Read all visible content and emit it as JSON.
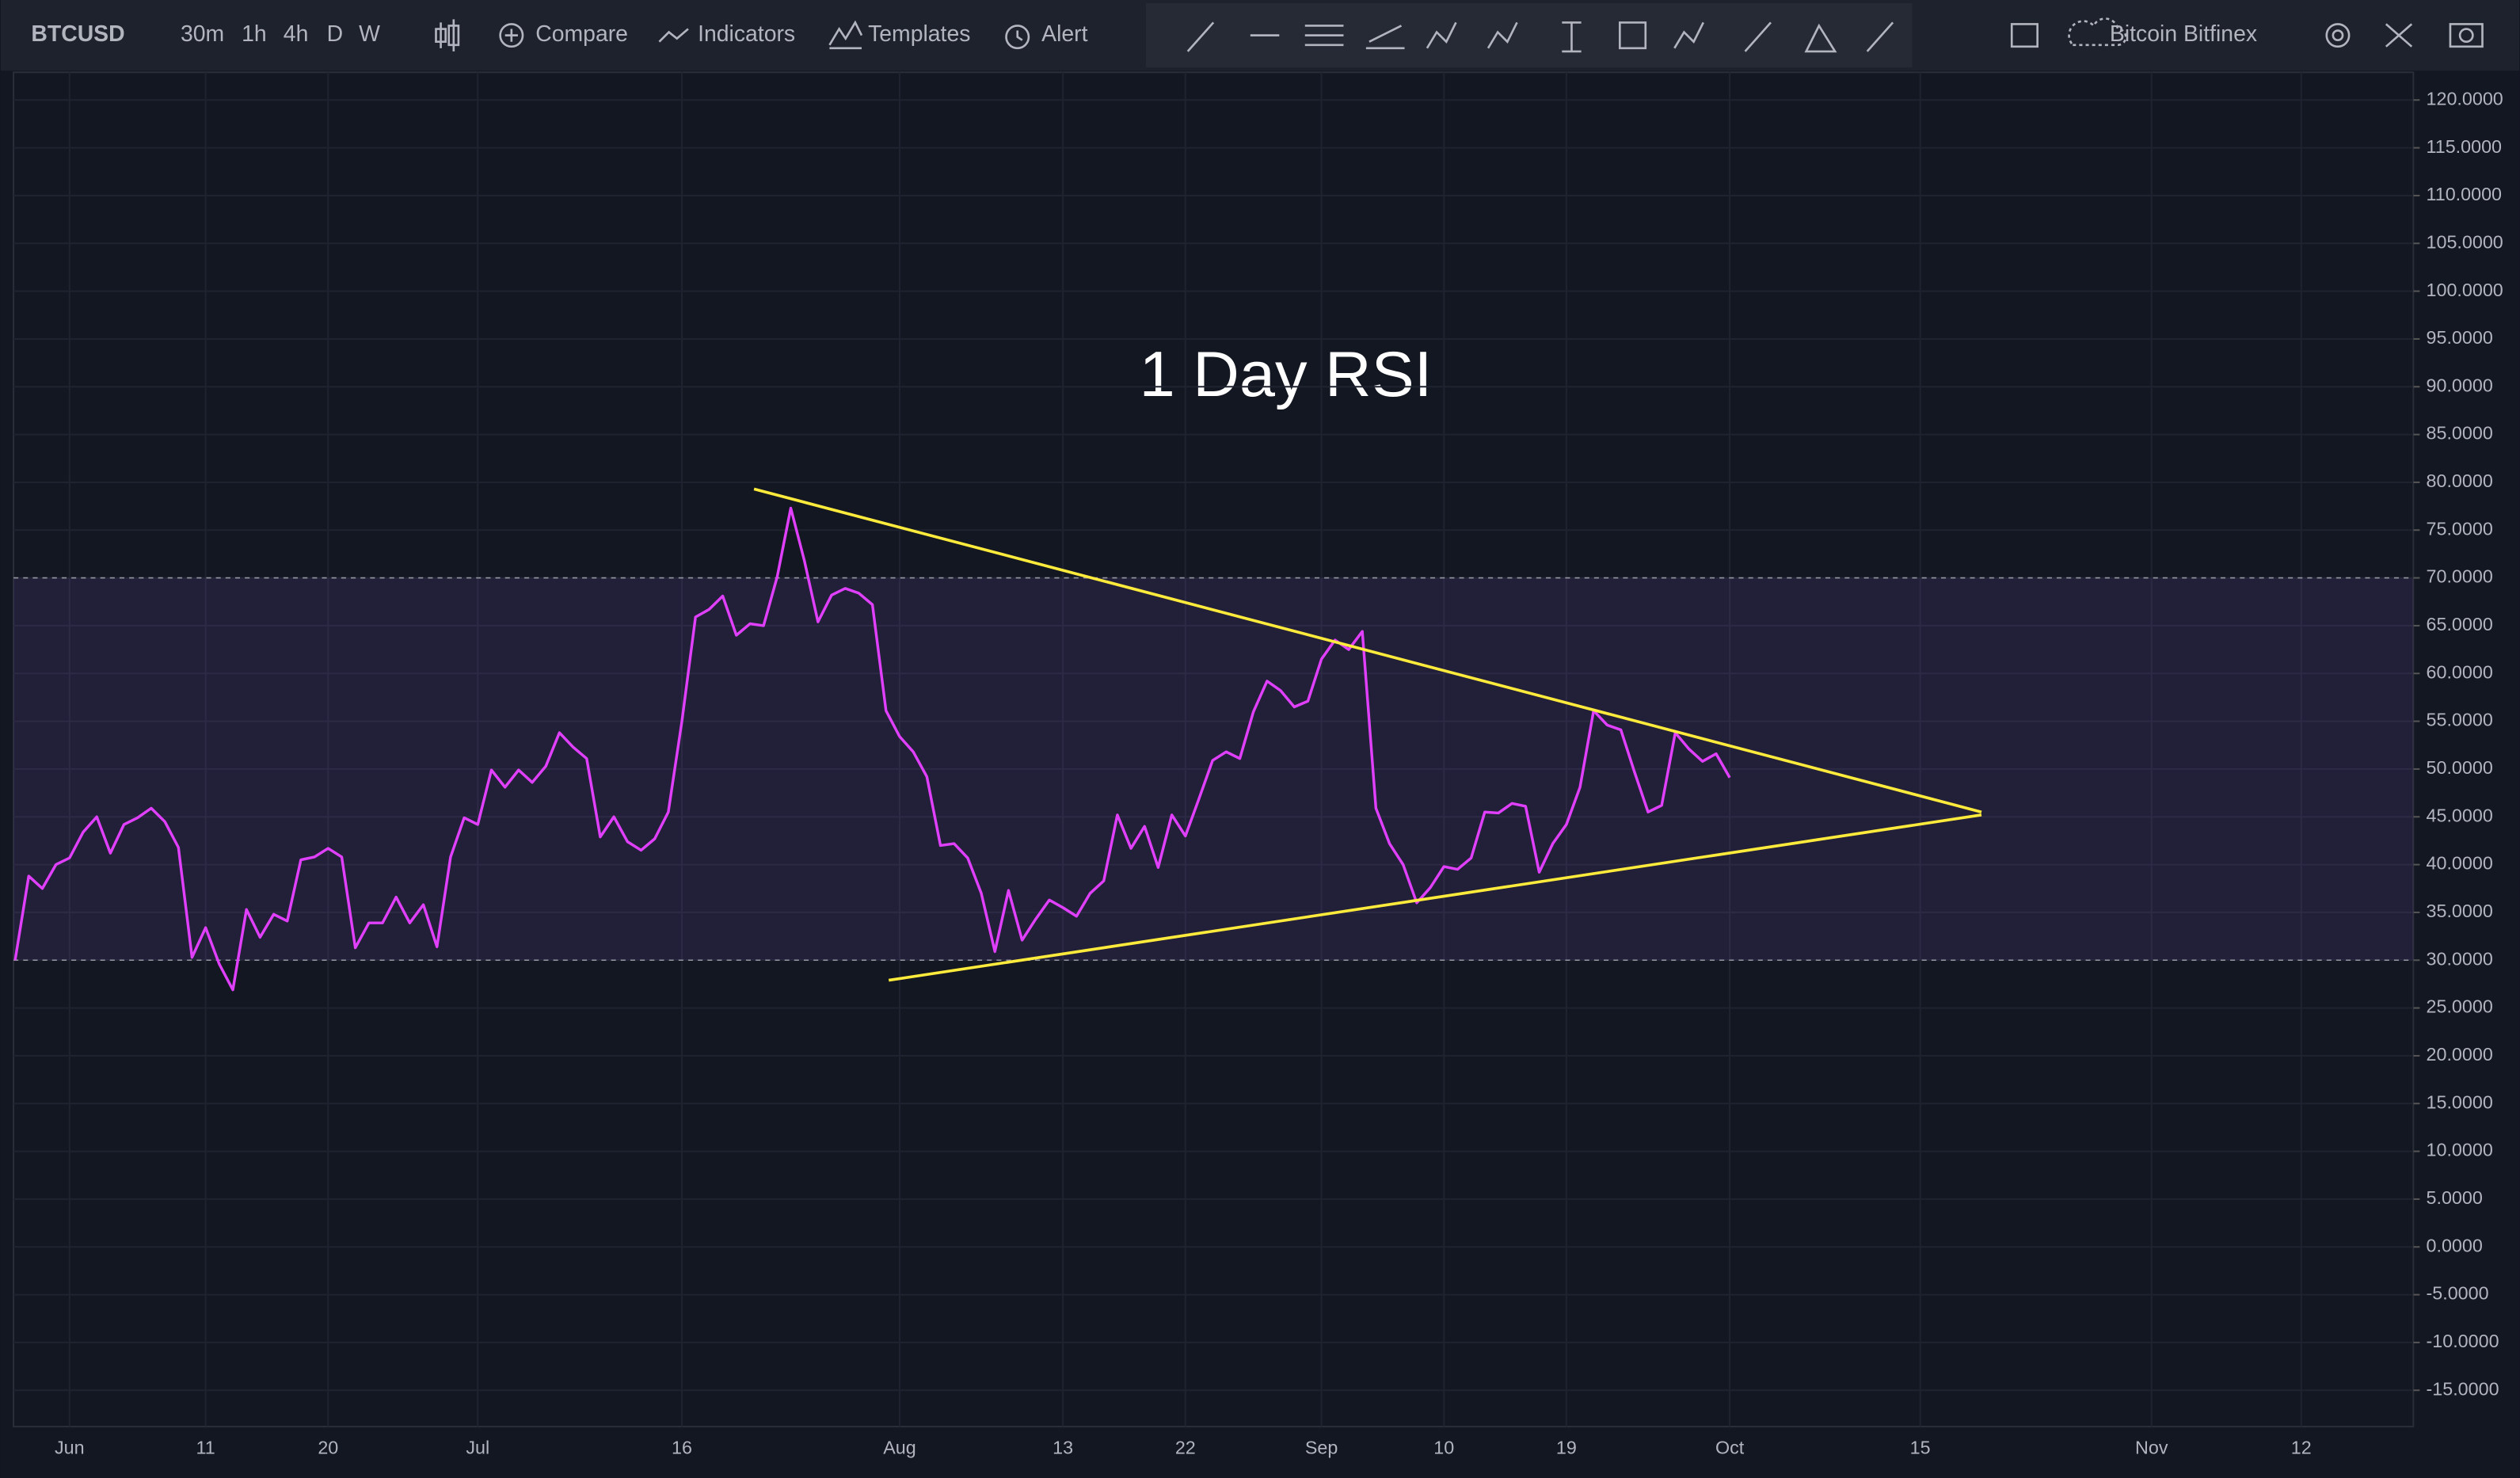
{
  "toolbar": {
    "symbol": "BTCUSD",
    "intervals": [
      "30m",
      "1h",
      "4h",
      "D",
      "W"
    ],
    "buttons": [
      "Compare",
      "Indicators",
      "Templates",
      "Alert"
    ],
    "exchange": "Bitcoin Bitfinex"
  },
  "chart_data": {
    "type": "line",
    "annotation": "1 Day RSI",
    "color": "#e040fb",
    "grid": true,
    "categories": [
      null,
      null,
      null,
      null,
      "Jun",
      null,
      null,
      null,
      null,
      null,
      null,
      null,
      null,
      null,
      "11",
      null,
      null,
      null,
      null,
      null,
      null,
      null,
      null,
      "20",
      null,
      null,
      null,
      null,
      null,
      null,
      null,
      null,
      null,
      null,
      "Jul",
      null,
      null,
      null,
      null,
      null,
      null,
      null,
      null,
      null,
      null,
      null,
      null,
      null,
      null,
      "16",
      null,
      null,
      null,
      null,
      null,
      null,
      null,
      null,
      null,
      null,
      null,
      null,
      null,
      null,
      null,
      "Aug",
      null,
      null,
      null,
      null,
      null,
      null,
      null,
      null,
      null,
      null,
      null,
      "13",
      null,
      null,
      null,
      null,
      null,
      null,
      null,
      null,
      "22",
      null,
      null,
      null,
      null,
      null,
      null,
      null,
      null,
      null,
      "Sep",
      null,
      null,
      null,
      null,
      null,
      null,
      null,
      null,
      "10",
      null,
      null,
      null,
      null,
      null,
      null,
      null,
      null,
      "19",
      null,
      null,
      null,
      null,
      null,
      null,
      null,
      null,
      null,
      null,
      null,
      "Oct",
      null,
      null,
      null,
      null,
      null,
      null,
      null,
      null,
      null,
      null,
      null,
      null,
      null,
      "15",
      null,
      null,
      null,
      null,
      null,
      null,
      null,
      null,
      null,
      null,
      null,
      null,
      null,
      null,
      null,
      null,
      "Nov",
      null,
      null,
      null,
      null,
      null,
      null,
      null,
      null,
      null,
      null,
      "12",
      null,
      null,
      null,
      null,
      null,
      null,
      null
    ],
    "values": [
      30,
      38.8,
      37.5,
      40,
      40.7,
      43.4,
      45,
      41.2,
      44.2,
      44.9,
      45.9,
      44.5,
      41.8,
      30.3,
      33.4,
      29.6,
      26.9,
      35.3,
      32.4,
      34.8,
      34.1,
      40.5,
      40.8,
      41.7,
      40.8,
      31.3,
      33.9,
      33.9,
      36.6,
      33.9,
      35.8,
      31.4,
      40.8,
      44.9,
      44.2,
      49.9,
      48.1,
      49.9,
      48.6,
      50.3,
      53.8,
      52.3,
      51.1,
      42.9,
      45,
      42.4,
      41.5,
      42.7,
      45.5,
      55,
      65.9,
      66.7,
      68.1,
      64,
      65.2,
      65,
      70.1,
      77.3,
      71.8,
      65.4,
      68.2,
      68.9,
      68.4,
      67.2,
      56.1,
      53.4,
      51.8,
      49.2,
      42,
      42.2,
      40.7,
      37,
      30.9,
      37.3,
      32.1,
      34.3,
      36.3,
      35.5,
      34.6,
      37,
      38.3,
      45.2,
      41.7,
      44,
      39.7,
      45.2,
      43,
      46.9,
      50.9,
      51.8,
      51.1,
      56,
      59.2,
      58.2,
      56.5,
      57.1,
      61.5,
      63.5,
      62.5,
      64.4,
      45.9,
      42.2,
      40,
      36,
      37.6,
      39.8,
      39.5,
      40.7,
      45.5,
      45.4,
      46.4,
      46.1,
      39.2,
      42.2,
      44.2,
      48.1,
      56.1,
      54.6,
      54.1,
      49.7,
      45.5,
      46.2,
      53.8,
      52.1,
      50.8,
      51.6,
      49.1,
      null,
      null,
      null,
      null,
      null,
      null,
      null,
      null,
      null,
      null,
      null,
      null,
      null,
      null,
      null,
      null,
      null,
      null,
      null,
      null,
      null,
      null,
      null,
      null,
      null,
      null,
      null,
      null,
      null,
      null,
      null,
      null,
      null,
      null,
      null,
      null,
      null,
      null,
      null,
      null,
      null,
      null,
      null,
      null,
      null,
      null,
      null,
      null,
      null
    ],
    "bands": [
      30,
      70
    ],
    "band_color": "#7e57c2",
    "trendlines": [
      {
        "color": "#ffeb3b",
        "x": [
          54.3,
          144.5
        ],
        "values": [
          79.3,
          45.5
        ]
      },
      {
        "color": "#ffeb3b",
        "x": [
          64.2,
          144.5
        ],
        "values": [
          27.9,
          45.2
        ]
      }
    ],
    "ylim": [
      -18.8,
      122.9
    ],
    "yticks": [
      {
        "value": 120,
        "label": "120.0000"
      },
      {
        "value": 115,
        "label": "115.0000"
      },
      {
        "value": 110,
        "label": "110.0000"
      },
      {
        "value": 105,
        "label": "105.0000"
      },
      {
        "value": 100,
        "label": "100.0000"
      },
      {
        "value": 95,
        "label": "95.0000"
      },
      {
        "value": 90,
        "label": "90.0000"
      },
      {
        "value": 85,
        "label": "85.0000"
      },
      {
        "value": 80,
        "label": "80.0000"
      },
      {
        "value": 75,
        "label": "75.0000"
      },
      {
        "value": 70,
        "label": "70.0000"
      },
      {
        "value": 65,
        "label": "65.0000"
      },
      {
        "value": 60,
        "label": "60.0000"
      },
      {
        "value": 55,
        "label": "55.0000"
      },
      {
        "value": 50,
        "label": "50.0000"
      },
      {
        "value": 45,
        "label": "45.0000"
      },
      {
        "value": 40,
        "label": "40.0000"
      },
      {
        "value": 35,
        "label": "35.0000"
      },
      {
        "value": 30,
        "label": "30.0000"
      },
      {
        "value": 25,
        "label": "25.0000"
      },
      {
        "value": 20,
        "label": "20.0000"
      },
      {
        "value": 15,
        "label": "15.0000"
      },
      {
        "value": 10,
        "label": "10.0000"
      },
      {
        "value": 5,
        "label": "5.0000"
      },
      {
        "value": 0,
        "label": "0.0000"
      },
      {
        "value": -5,
        "label": "-5.0000"
      },
      {
        "value": -10,
        "label": "-10.0000"
      },
      {
        "value": -15,
        "label": "-15.0000"
      }
    ]
  }
}
